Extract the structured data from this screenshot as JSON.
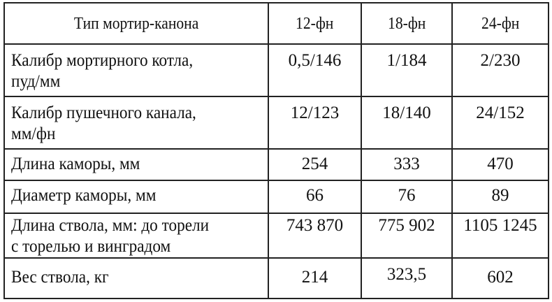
{
  "table": {
    "headers": [
      "Тип мортир-канона",
      "12-фн",
      "18-фн",
      "24-фн"
    ],
    "rows": [
      {
        "label": [
          "Калибр мортирного котла,",
          "пуд/мм"
        ],
        "values": [
          "0,5/146",
          "1/184",
          "2/230"
        ]
      },
      {
        "label": [
          "Калибр пушечного канала,",
          "мм/фн"
        ],
        "values": [
          "12/123",
          "18/140",
          "24/152"
        ]
      },
      {
        "label": [
          "Длина каморы, мм"
        ],
        "values": [
          "254",
          "333",
          "470"
        ]
      },
      {
        "label": [
          "Диаметр каморы, мм"
        ],
        "values": [
          "66",
          "76",
          "89"
        ]
      },
      {
        "label": [
          "Длина ствола, мм:  до торели",
          "с торелью  и винградом"
        ],
        "values": [
          "743 870",
          "775 902",
          "1105 1245"
        ]
      },
      {
        "label": [
          "Вес ствола, кг"
        ],
        "values": [
          "214",
          "323,5",
          "602"
        ]
      }
    ]
  }
}
